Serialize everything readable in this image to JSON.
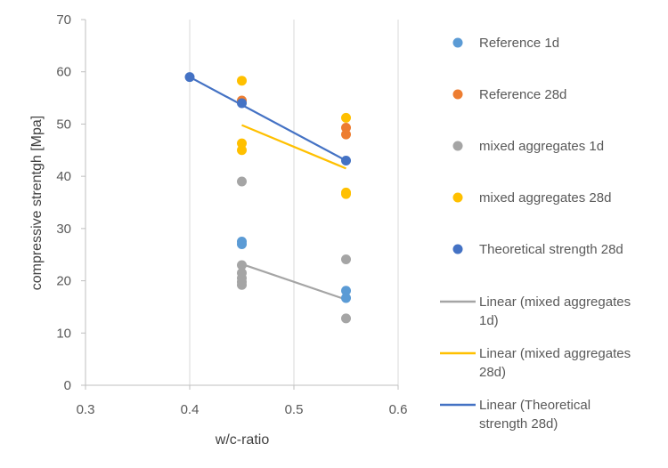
{
  "chart_data": {
    "type": "scatter",
    "title": "",
    "xlabel": "w/c-ratio",
    "ylabel": "compressive strentgh [Mpa]",
    "xlim": [
      0.3,
      0.6
    ],
    "ylim": [
      0,
      70
    ],
    "x_ticks": [
      "0.3",
      "0.4",
      "0.5",
      "0.6"
    ],
    "y_ticks": [
      "0",
      "10",
      "20",
      "30",
      "40",
      "50",
      "60",
      "70"
    ],
    "x_tick_values": [
      0.3,
      0.4,
      0.5,
      0.6
    ],
    "y_tick_values": [
      0,
      10,
      20,
      30,
      40,
      50,
      60,
      70
    ],
    "grid": "vertical",
    "legend_position": "right",
    "series": [
      {
        "name": "Reference 1d",
        "kind": "scatter",
        "color": "#5B9BD5",
        "points": [
          [
            0.45,
            27.5
          ],
          [
            0.45,
            27.0
          ],
          [
            0.55,
            18.1
          ],
          [
            0.55,
            16.7
          ]
        ]
      },
      {
        "name": "Reference 28d",
        "kind": "scatter",
        "color": "#ED7D31",
        "points": [
          [
            0.45,
            54.5
          ],
          [
            0.55,
            49.3
          ],
          [
            0.55,
            48.0
          ]
        ]
      },
      {
        "name": "mixed aggregates 1d",
        "kind": "scatter",
        "color": "#A5A5A5",
        "points": [
          [
            0.45,
            39.0
          ],
          [
            0.45,
            23.0
          ],
          [
            0.45,
            21.5
          ],
          [
            0.45,
            20.5
          ],
          [
            0.45,
            19.8
          ],
          [
            0.45,
            19.2
          ],
          [
            0.55,
            24.1
          ],
          [
            0.55,
            12.8
          ]
        ]
      },
      {
        "name": "mixed aggregates 28d",
        "kind": "scatter",
        "color": "#FFC000",
        "points": [
          [
            0.45,
            58.3
          ],
          [
            0.45,
            46.3
          ],
          [
            0.45,
            45.0
          ],
          [
            0.55,
            51.2
          ],
          [
            0.55,
            36.9
          ],
          [
            0.55,
            36.6
          ]
        ]
      },
      {
        "name": "Theoretical strength 28d",
        "kind": "scatter",
        "color": "#4472C4",
        "points": [
          [
            0.4,
            59.0
          ],
          [
            0.45,
            54.0
          ],
          [
            0.55,
            43.0
          ]
        ]
      },
      {
        "name": "Linear (mixed aggregates 1d)",
        "kind": "trendline",
        "color": "#A5A5A5",
        "points": [
          [
            0.45,
            23.2
          ],
          [
            0.55,
            16.4
          ]
        ]
      },
      {
        "name": "Linear (mixed aggregates 28d)",
        "kind": "trendline",
        "color": "#FFC000",
        "points": [
          [
            0.45,
            49.8
          ],
          [
            0.55,
            41.5
          ]
        ]
      },
      {
        "name": "Linear (Theoretical strength 28d)",
        "kind": "trendline",
        "color": "#4472C4",
        "points": [
          [
            0.4,
            59.0
          ],
          [
            0.55,
            43.0
          ]
        ]
      }
    ],
    "legend": [
      {
        "series": 0,
        "lines": [
          "Reference 1d"
        ]
      },
      {
        "series": 1,
        "lines": [
          "Reference 28d"
        ]
      },
      {
        "series": 2,
        "lines": [
          "mixed aggregates 1d"
        ]
      },
      {
        "series": 3,
        "lines": [
          "mixed aggregates 28d"
        ]
      },
      {
        "series": 4,
        "lines": [
          "Theoretical strength 28d"
        ]
      },
      {
        "series": 5,
        "lines": [
          "Linear (mixed aggregates",
          "1d)"
        ]
      },
      {
        "series": 6,
        "lines": [
          "Linear (mixed aggregates",
          "28d)"
        ]
      },
      {
        "series": 7,
        "lines": [
          "Linear (Theoretical",
          "strength 28d)"
        ]
      }
    ]
  }
}
